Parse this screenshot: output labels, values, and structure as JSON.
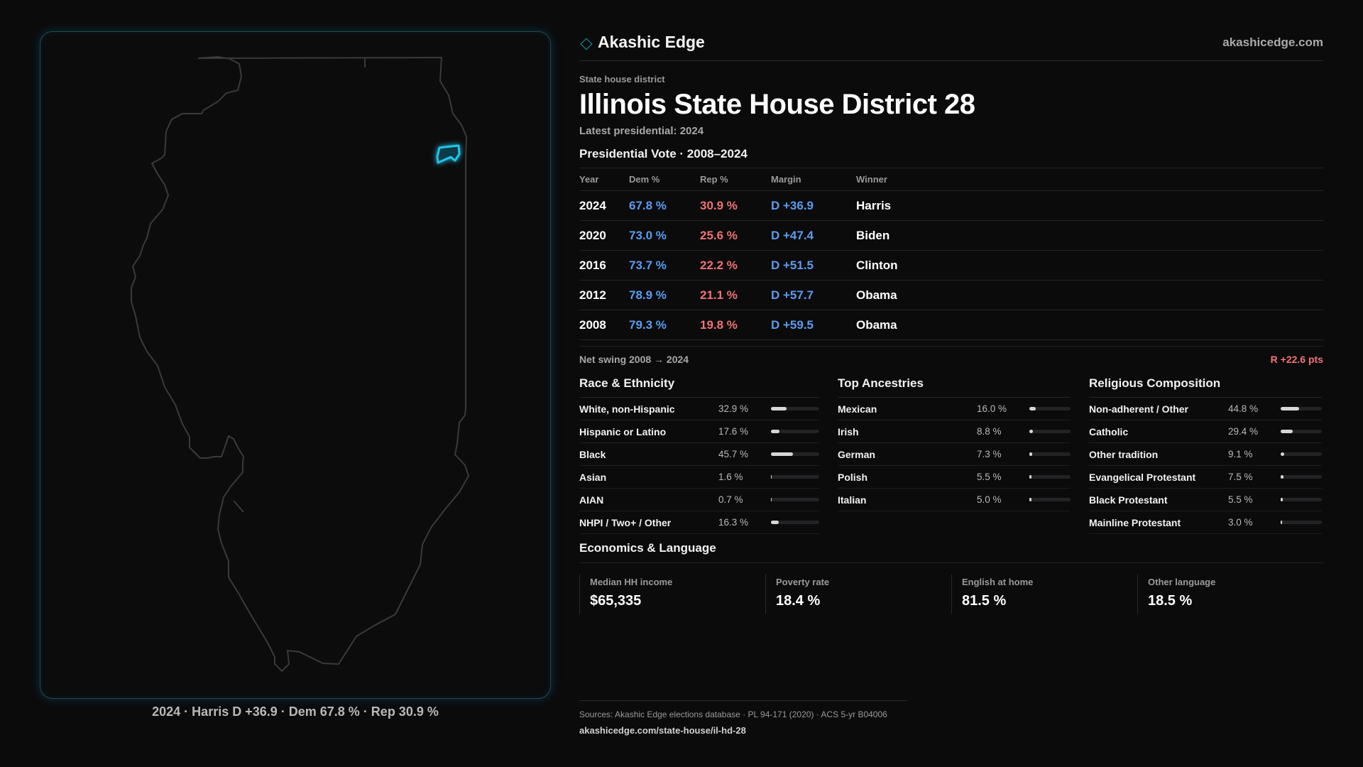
{
  "brand": {
    "name": "Akashic Edge",
    "url": "akashicedge.com"
  },
  "kicker": "State house district",
  "title": "Illinois State House District 28",
  "latest": "Latest presidential: 2024",
  "presidential": {
    "title": "Presidential Vote · 2008–2024",
    "headers": {
      "year": "Year",
      "dem": "Dem %",
      "rep": "Rep %",
      "margin": "Margin",
      "winner": "Winner"
    },
    "rows": [
      {
        "year": "2024",
        "dem": "67.8 %",
        "rep": "30.9 %",
        "margin": "D +36.9",
        "winner": "Harris"
      },
      {
        "year": "2020",
        "dem": "73.0 %",
        "rep": "25.6 %",
        "margin": "D +47.4",
        "winner": "Biden"
      },
      {
        "year": "2016",
        "dem": "73.7 %",
        "rep": "22.2 %",
        "margin": "D +51.5",
        "winner": "Clinton"
      },
      {
        "year": "2012",
        "dem": "78.9 %",
        "rep": "21.1 %",
        "margin": "D +57.7",
        "winner": "Obama"
      },
      {
        "year": "2008",
        "dem": "79.3 %",
        "rep": "19.8 %",
        "margin": "D +59.5",
        "winner": "Obama"
      }
    ],
    "swing_label": "Net swing 2008 → 2024",
    "swing_value": "R +22.6 pts"
  },
  "race": {
    "title": "Race & Ethnicity",
    "items": [
      {
        "label": "White, non-Hispanic",
        "value": "32.9 %",
        "pct": 32.9
      },
      {
        "label": "Hispanic or Latino",
        "value": "17.6 %",
        "pct": 17.6
      },
      {
        "label": "Black",
        "value": "45.7 %",
        "pct": 45.7
      },
      {
        "label": "Asian",
        "value": "1.6 %",
        "pct": 1.6
      },
      {
        "label": "AIAN",
        "value": "0.7 %",
        "pct": 0.7
      },
      {
        "label": "NHPI / Two+ / Other",
        "value": "16.3 %",
        "pct": 16.3
      }
    ]
  },
  "ancestry": {
    "title": "Top Ancestries",
    "items": [
      {
        "label": "Mexican",
        "value": "16.0 %",
        "pct": 16.0
      },
      {
        "label": "Irish",
        "value": "8.8 %",
        "pct": 8.8
      },
      {
        "label": "German",
        "value": "7.3 %",
        "pct": 7.3
      },
      {
        "label": "Polish",
        "value": "5.5 %",
        "pct": 5.5
      },
      {
        "label": "Italian",
        "value": "5.0 %",
        "pct": 5.0
      }
    ]
  },
  "religion": {
    "title": "Religious Composition",
    "items": [
      {
        "label": "Non-adherent / Other",
        "value": "44.8 %",
        "pct": 44.8
      },
      {
        "label": "Catholic",
        "value": "29.4 %",
        "pct": 29.4
      },
      {
        "label": "Other tradition",
        "value": "9.1 %",
        "pct": 9.1
      },
      {
        "label": "Evangelical Protestant",
        "value": "7.5 %",
        "pct": 7.5
      },
      {
        "label": "Black Protestant",
        "value": "5.5 %",
        "pct": 5.5
      },
      {
        "label": "Mainline Protestant",
        "value": "3.0 %",
        "pct": 3.0
      }
    ]
  },
  "economics": {
    "title": "Economics & Language",
    "cards": [
      {
        "label": "Median HH income",
        "value": "$65,335"
      },
      {
        "label": "Poverty rate",
        "value": "18.4 %"
      },
      {
        "label": "English at home",
        "value": "81.5 %"
      },
      {
        "label": "Other language",
        "value": "18.5 %"
      }
    ]
  },
  "map": {
    "caption": "2024 · Harris D +36.9 · Dem 67.8 % · Rep 30.9 %",
    "district_color": "#22c3e6",
    "outline_color": "#3a3a3c"
  },
  "sources": {
    "line": "Sources: Akashic Edge elections database · PL 94-171 (2020) · ACS 5-yr B04006",
    "url": "akashicedge.com/state-house/il-hd-28"
  },
  "colors": {
    "dem": "#5b9cf0",
    "rep": "#f07474",
    "accent": "#1a9bb5"
  }
}
